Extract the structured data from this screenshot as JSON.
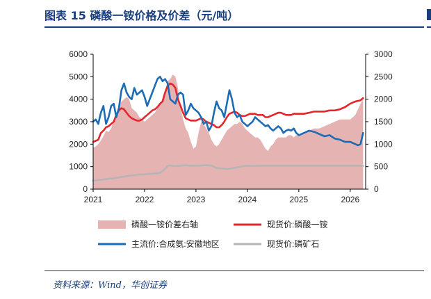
{
  "figure": {
    "title": "图表 15    磷酸一铵价格及价差（元/吨）",
    "source": "资料来源：Wind，华创证券"
  },
  "colors": {
    "spread_fill": "#e6b3b3",
    "red_line": "#e3262b",
    "blue_line": "#1d6bb5",
    "gray_line": "#b5b5b5",
    "brand": "#1a3e7c"
  },
  "chart_data": {
    "type": "line",
    "x_is_date": true,
    "xlim": [
      2021.0,
      2026.3
    ],
    "x_ticks": [
      "2021",
      "2022",
      "2023",
      "2024",
      "2025",
      "2026"
    ],
    "y_left": {
      "lim": [
        0,
        6000
      ],
      "ticks": [
        "0",
        "1000",
        "2000",
        "3000",
        "4000",
        "5000",
        "6000"
      ]
    },
    "y_right": {
      "lim": [
        0,
        3000
      ],
      "ticks": [
        "0",
        "500",
        "1000",
        "1500",
        "2000",
        "2500",
        "3000"
      ]
    },
    "legend_placement": "bottom",
    "grid": false,
    "series": [
      {
        "name": "磷酸一铵价差右轴",
        "kind": "area",
        "axis": "right",
        "x": [
          2021.0,
          2021.05,
          2021.1,
          2021.15,
          2021.2,
          2021.25,
          2021.3,
          2021.35,
          2021.4,
          2021.45,
          2021.5,
          2021.55,
          2021.6,
          2021.65,
          2021.7,
          2021.75,
          2021.8,
          2021.85,
          2021.9,
          2021.95,
          2022.0,
          2022.05,
          2022.1,
          2022.15,
          2022.2,
          2022.25,
          2022.3,
          2022.35,
          2022.4,
          2022.45,
          2022.5,
          2022.55,
          2022.6,
          2022.65,
          2022.7,
          2022.75,
          2022.8,
          2022.85,
          2022.9,
          2022.95,
          2023.0,
          2023.05,
          2023.1,
          2023.15,
          2023.2,
          2023.25,
          2023.3,
          2023.35,
          2023.4,
          2023.45,
          2023.5,
          2023.55,
          2023.6,
          2023.65,
          2023.7,
          2023.75,
          2023.8,
          2023.85,
          2023.9,
          2023.95,
          2024.0,
          2024.05,
          2024.1,
          2024.15,
          2024.2,
          2024.25,
          2024.3,
          2024.35,
          2024.4,
          2024.45,
          2024.5,
          2024.55,
          2024.6,
          2024.65,
          2024.7,
          2024.75,
          2024.8,
          2024.85,
          2024.9,
          2024.95,
          2025.0,
          2025.1,
          2025.2,
          2025.3,
          2025.4,
          2025.5,
          2025.6,
          2025.7,
          2025.8,
          2025.9,
          2026.0,
          2026.1,
          2026.2,
          2026.25
        ],
        "y": [
          920,
          950,
          1000,
          1080,
          1180,
          1300,
          1270,
          1350,
          1550,
          1700,
          1850,
          1950,
          2000,
          2050,
          2000,
          1800,
          1750,
          1700,
          1600,
          1550,
          1500,
          1550,
          1600,
          1650,
          1700,
          1800,
          1900,
          2000,
          2200,
          2400,
          2450,
          2550,
          2500,
          2250,
          1800,
          1550,
          1350,
          1250,
          1050,
          900,
          950,
          1250,
          1500,
          1450,
          1350,
          1250,
          1100,
          1000,
          950,
          1000,
          1100,
          1200,
          1300,
          1350,
          1400,
          1450,
          1450,
          1500,
          1450,
          1350,
          1300,
          1250,
          1200,
          1150,
          1150,
          1100,
          1000,
          900,
          850,
          950,
          1000,
          1100,
          1150,
          1150,
          1150,
          1150,
          1200,
          1200,
          1150,
          1200,
          1200,
          1250,
          1300,
          1350,
          1350,
          1400,
          1450,
          1500,
          1550,
          1550,
          1550,
          1650,
          1900,
          2000
        ]
      },
      {
        "name": "现货价:磷酸一铵",
        "kind": "line",
        "axis": "left",
        "x": [
          2021.0,
          2021.05,
          2021.1,
          2021.15,
          2021.2,
          2021.25,
          2021.3,
          2021.35,
          2021.4,
          2021.45,
          2021.5,
          2021.55,
          2021.6,
          2021.65,
          2021.7,
          2021.75,
          2021.8,
          2021.85,
          2021.9,
          2021.95,
          2022.0,
          2022.05,
          2022.1,
          2022.15,
          2022.2,
          2022.25,
          2022.3,
          2022.35,
          2022.4,
          2022.45,
          2022.5,
          2022.55,
          2022.6,
          2022.65,
          2022.7,
          2022.75,
          2022.8,
          2022.85,
          2022.9,
          2022.95,
          2023.0,
          2023.05,
          2023.1,
          2023.15,
          2023.2,
          2023.25,
          2023.3,
          2023.35,
          2023.4,
          2023.45,
          2023.5,
          2023.55,
          2023.6,
          2023.65,
          2023.7,
          2023.75,
          2023.8,
          2023.85,
          2023.9,
          2023.95,
          2024.0,
          2024.05,
          2024.1,
          2024.15,
          2024.2,
          2024.25,
          2024.3,
          2024.35,
          2024.4,
          2024.45,
          2024.5,
          2024.55,
          2024.6,
          2024.65,
          2024.7,
          2024.75,
          2024.8,
          2024.85,
          2024.9,
          2024.95,
          2025.0,
          2025.1,
          2025.2,
          2025.3,
          2025.4,
          2025.5,
          2025.6,
          2025.7,
          2025.8,
          2025.9,
          2026.0,
          2026.1,
          2026.2,
          2026.25
        ],
        "y": [
          2100,
          2150,
          2200,
          2500,
          2600,
          2750,
          2800,
          2900,
          3000,
          3300,
          3500,
          3600,
          3550,
          3400,
          3250,
          3150,
          3100,
          3050,
          3050,
          3100,
          3200,
          3300,
          3400,
          3500,
          3550,
          3650,
          3800,
          3900,
          4300,
          4600,
          4700,
          4650,
          4500,
          4000,
          3700,
          3400,
          3150,
          3100,
          3050,
          3050,
          3050,
          3100,
          3150,
          3100,
          3000,
          2950,
          2900,
          2850,
          2750,
          2750,
          2850,
          3000,
          3200,
          3350,
          3400,
          3450,
          3400,
          3300,
          3250,
          3250,
          3300,
          3350,
          3350,
          3350,
          3300,
          3300,
          3300,
          3200,
          3200,
          3250,
          3300,
          3350,
          3400,
          3400,
          3350,
          3300,
          3300,
          3300,
          3350,
          3350,
          3350,
          3350,
          3400,
          3450,
          3450,
          3450,
          3500,
          3500,
          3550,
          3650,
          3800,
          3900,
          3950,
          4050
        ]
      },
      {
        "name": "主流价:合成氨:安徽地区",
        "kind": "line",
        "axis": "left",
        "x": [
          2021.0,
          2021.05,
          2021.1,
          2021.15,
          2021.2,
          2021.25,
          2021.3,
          2021.35,
          2021.4,
          2021.45,
          2021.5,
          2021.55,
          2021.6,
          2021.65,
          2021.7,
          2021.75,
          2021.8,
          2021.85,
          2021.9,
          2021.95,
          2022.0,
          2022.05,
          2022.1,
          2022.15,
          2022.2,
          2022.25,
          2022.3,
          2022.35,
          2022.4,
          2022.45,
          2022.5,
          2022.55,
          2022.6,
          2022.65,
          2022.7,
          2022.75,
          2022.8,
          2022.85,
          2022.9,
          2022.95,
          2023.0,
          2023.05,
          2023.1,
          2023.15,
          2023.2,
          2023.25,
          2023.3,
          2023.35,
          2023.4,
          2023.45,
          2023.5,
          2023.55,
          2023.6,
          2023.65,
          2023.7,
          2023.75,
          2023.8,
          2023.85,
          2023.9,
          2023.95,
          2024.0,
          2024.05,
          2024.1,
          2024.15,
          2024.2,
          2024.25,
          2024.3,
          2024.35,
          2024.4,
          2024.45,
          2024.5,
          2024.55,
          2024.6,
          2024.65,
          2024.7,
          2024.75,
          2024.8,
          2024.85,
          2024.9,
          2024.95,
          2025.0,
          2025.1,
          2025.2,
          2025.3,
          2025.4,
          2025.5,
          2025.6,
          2025.7,
          2025.8,
          2025.9,
          2026.0,
          2026.1,
          2026.15,
          2026.2,
          2026.25
        ],
        "y": [
          3000,
          3100,
          2900,
          3400,
          3700,
          2900,
          3200,
          3700,
          3800,
          3200,
          3600,
          4400,
          4700,
          4300,
          4100,
          4000,
          4500,
          4200,
          4300,
          4400,
          4100,
          3700,
          4000,
          4300,
          4600,
          4900,
          5000,
          4800,
          4900,
          4700,
          4000,
          3900,
          3800,
          4200,
          4300,
          4200,
          3300,
          3500,
          3800,
          3600,
          3500,
          3400,
          3200,
          2900,
          3000,
          2600,
          2800,
          3400,
          3900,
          3600,
          3500,
          3200,
          3800,
          4400,
          4000,
          3400,
          3200,
          3300,
          3000,
          2900,
          2800,
          2900,
          3000,
          3200,
          3100,
          3000,
          2900,
          2800,
          2850,
          2700,
          2600,
          2700,
          2800,
          2700,
          2500,
          2600,
          2650,
          2600,
          2700,
          2500,
          2400,
          2500,
          2600,
          2550,
          2450,
          2350,
          2400,
          2250,
          2200,
          2100,
          2100,
          2000,
          1950,
          2000,
          2500
        ]
      },
      {
        "name": "现货价:磷矿石",
        "kind": "line",
        "axis": "left",
        "x": [
          2021.0,
          2021.1,
          2021.2,
          2021.3,
          2021.4,
          2021.5,
          2021.6,
          2021.7,
          2021.8,
          2021.9,
          2022.0,
          2022.1,
          2022.2,
          2022.3,
          2022.4,
          2022.45,
          2022.5,
          2022.6,
          2022.7,
          2022.8,
          2022.9,
          2023.0,
          2023.1,
          2023.2,
          2023.3,
          2023.4,
          2023.5,
          2023.6,
          2023.7,
          2023.8,
          2023.9,
          2024.0,
          2024.1,
          2024.2,
          2024.3,
          2024.4,
          2024.5,
          2024.6,
          2024.8,
          2025.0,
          2025.2,
          2025.4,
          2025.6,
          2025.8,
          2026.0,
          2026.25
        ],
        "y": [
          380,
          400,
          430,
          460,
          480,
          520,
          560,
          600,
          620,
          650,
          660,
          680,
          700,
          720,
          900,
          1040,
          1050,
          1020,
          1040,
          1060,
          1040,
          1040,
          1050,
          1070,
          1050,
          940,
          920,
          900,
          930,
          970,
          1010,
          1040,
          1030,
          1040,
          1040,
          1040,
          1040,
          1040,
          1040,
          1040,
          1040,
          1040,
          1040,
          1040,
          1040,
          1040
        ]
      }
    ]
  }
}
